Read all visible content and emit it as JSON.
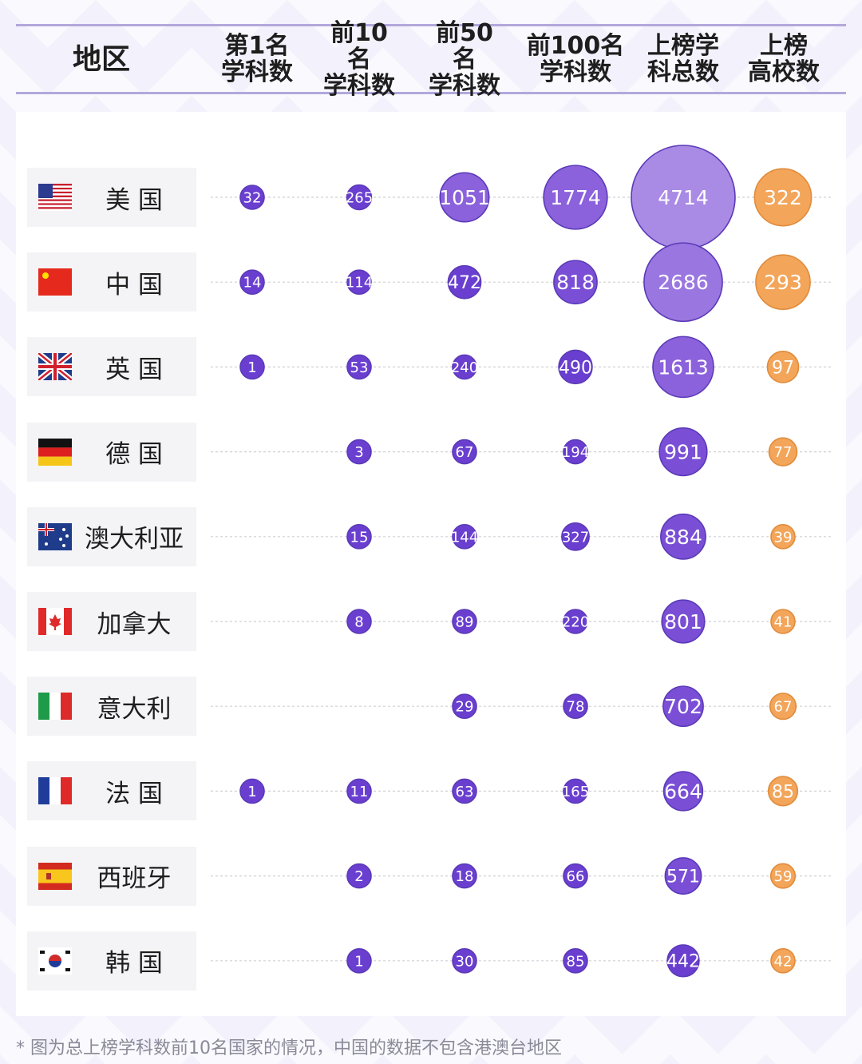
{
  "header": {
    "region_label": "地区",
    "columns": [
      "第1名\n学科数",
      "前10名\n学科数",
      "前50名\n学科数",
      "前100名\n学科数",
      "上榜学\n科总数",
      "上榜\n高校数"
    ]
  },
  "colors": {
    "purple_fill": [
      "#6a3fd0",
      "#7a4fd6",
      "#8b62db",
      "#9a76e0",
      "#a98ae4"
    ],
    "orange_fill": "#f3a55a",
    "bubble_text": "#ffffff"
  },
  "chart_data": {
    "type": "bubble-table",
    "columns": [
      "第1名学科数",
      "前10名学科数",
      "前50名学科数",
      "前100名学科数",
      "上榜学科总数",
      "上榜高校数"
    ],
    "rows": [
      {
        "region": "美 国",
        "flag": "us-flag",
        "values": [
          32,
          265,
          1051,
          1774,
          4714,
          322
        ]
      },
      {
        "region": "中 国",
        "flag": "cn-flag",
        "values": [
          14,
          114,
          472,
          818,
          2686,
          293
        ]
      },
      {
        "region": "英 国",
        "flag": "uk-flag",
        "values": [
          1,
          53,
          240,
          490,
          1613,
          97
        ]
      },
      {
        "region": "德 国",
        "flag": "de-flag",
        "values": [
          null,
          3,
          67,
          194,
          991,
          77
        ]
      },
      {
        "region": "澳大利亚",
        "flag": "au-flag",
        "values": [
          null,
          15,
          144,
          327,
          884,
          39
        ]
      },
      {
        "region": "加拿大",
        "flag": "ca-flag",
        "values": [
          null,
          8,
          89,
          220,
          801,
          41
        ]
      },
      {
        "region": "意大利",
        "flag": "it-flag",
        "values": [
          null,
          null,
          29,
          78,
          702,
          67
        ]
      },
      {
        "region": "法 国",
        "flag": "fr-flag",
        "values": [
          1,
          11,
          63,
          165,
          664,
          85
        ]
      },
      {
        "region": "西班牙",
        "flag": "es-flag",
        "values": [
          null,
          2,
          18,
          66,
          571,
          59
        ]
      },
      {
        "region": "韩 国",
        "flag": "kr-flag",
        "values": [
          null,
          1,
          30,
          85,
          442,
          42
        ]
      }
    ]
  },
  "footnote": "* 图为总上榜学科数前10名国家的情况，中国的数据不包含港澳台地区"
}
